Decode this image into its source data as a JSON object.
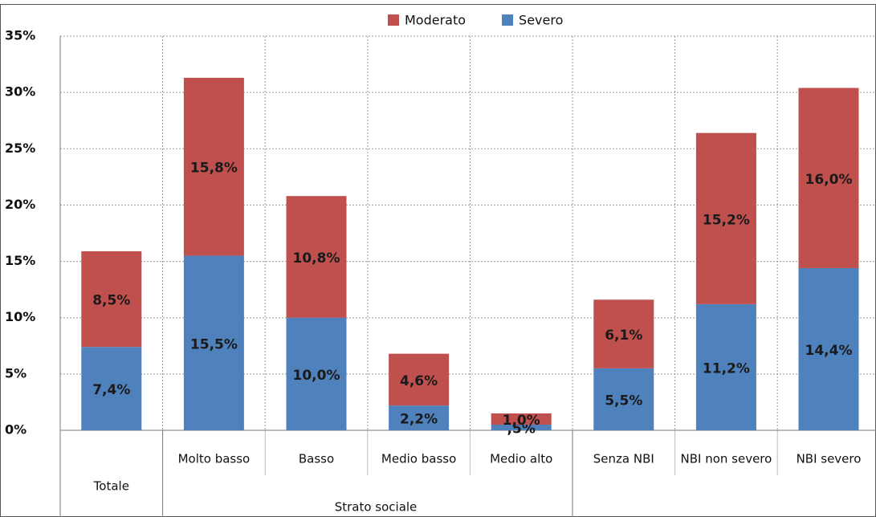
{
  "chart_data": {
    "type": "stacked-bar",
    "categories": [
      "Totale",
      "Molto basso",
      "Basso",
      "Medio basso",
      "Medio alto",
      "Senza NBI",
      "NBI non severo",
      "NBI severo"
    ],
    "group_label": "Strato sociale",
    "series": [
      {
        "name": "Severo",
        "color": "#4f81bd",
        "values": [
          7.4,
          15.5,
          10.0,
          2.2,
          0.5,
          5.5,
          11.2,
          14.4
        ],
        "value_labels": [
          "7,4%",
          "15,5%",
          "10,0%",
          "2,2%",
          ",5%",
          "5,5%",
          "11,2%",
          "14,4%"
        ]
      },
      {
        "name": "Moderato",
        "color": "#c0504d",
        "values": [
          8.5,
          15.8,
          10.8,
          4.6,
          1.0,
          6.1,
          15.2,
          16.0
        ],
        "value_labels": [
          "8,5%",
          "15,8%",
          "10,8%",
          "4,6%",
          "1,0%",
          "6,1%",
          "15,2%",
          "16,0%"
        ]
      }
    ],
    "ylim": [
      0,
      35
    ],
    "yticks": [
      {
        "value": 0,
        "label": "0%"
      },
      {
        "value": 5,
        "label": "5%"
      },
      {
        "value": 10,
        "label": "10%"
      },
      {
        "value": 15,
        "label": "15%"
      },
      {
        "value": 20,
        "label": "20%"
      },
      {
        "value": 25,
        "label": "25%"
      },
      {
        "value": 30,
        "label": "30%"
      },
      {
        "value": 35,
        "label": "35%"
      }
    ],
    "grid": true
  }
}
